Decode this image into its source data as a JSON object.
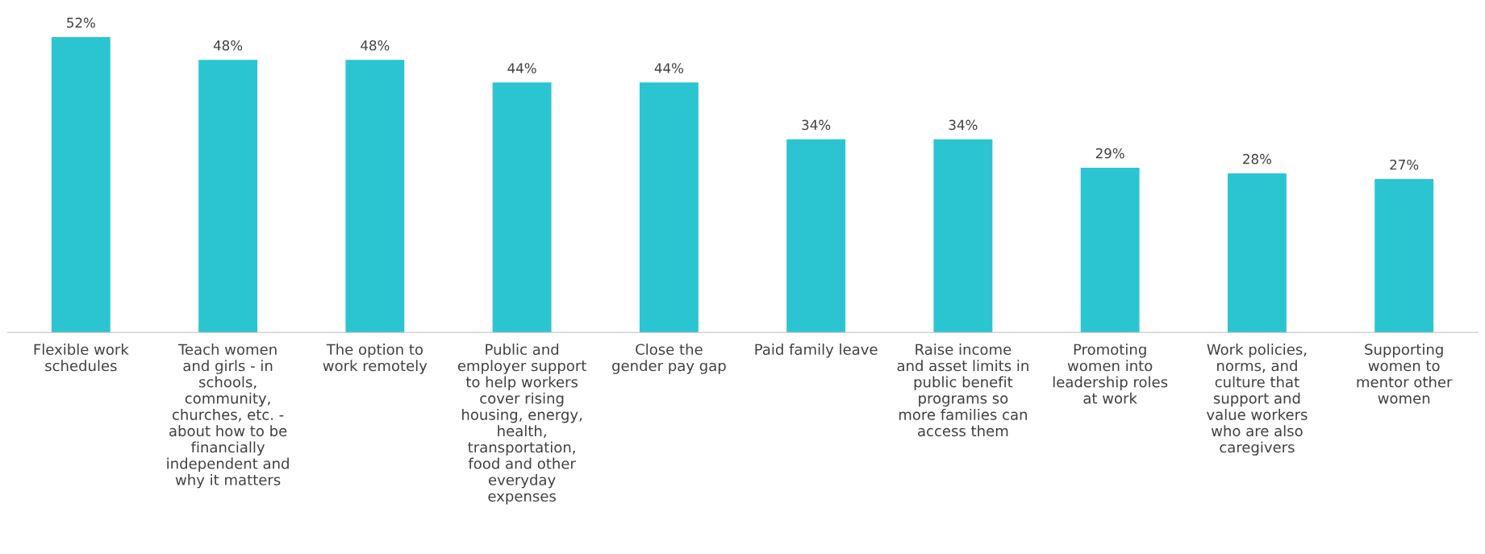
{
  "chart_data": {
    "type": "bar",
    "categories": [
      "Flexible work\nschedules",
      "Teach women\nand girls - in\nschools,\ncommunity,\nchurches, etc. -\nabout how to be\nfinancially\nindependent and\nwhy it matters",
      "The option to\nwork remotely",
      "Public and\nemployer support\nto help workers\ncover rising\nhousing, energy,\nhealth,\ntransportation,\nfood and other\neveryday\nexpenses",
      "Close the\ngender pay gap",
      "Paid family leave",
      "Raise income\nand asset limits in\npublic benefit\nprograms so\nmore families can\naccess them",
      "Promoting\nwomen into\nleadership roles\nat work",
      "Work policies,\nnorms, and\nculture that\nsupport and\nvalue workers\nwho are also\ncaregivers",
      "Supporting\nwomen to\nmentor other\nwomen"
    ],
    "values": [
      52,
      48,
      48,
      44,
      44,
      34,
      34,
      29,
      28,
      27
    ],
    "value_labels": [
      "52%",
      "48%",
      "48%",
      "44%",
      "44%",
      "34%",
      "34%",
      "29%",
      "28%",
      "27%"
    ],
    "color": "#2bc5d1",
    "tick_labels": "x",
    "grid": false,
    "legend": false
  }
}
